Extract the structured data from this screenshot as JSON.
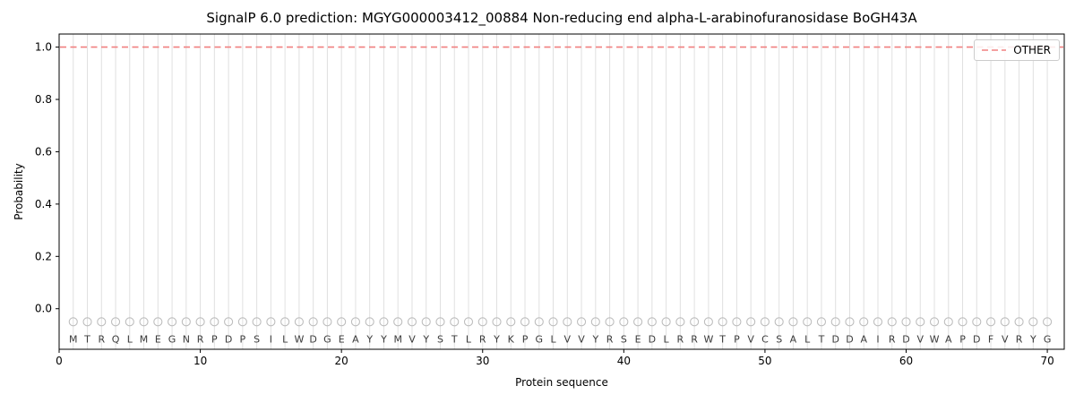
{
  "chart_data": {
    "type": "line",
    "title": "SignalP 6.0 prediction: MGYG000003412_00884 Non-reducing end alpha-L-arabinofuranosidase BoGH43A",
    "xlabel": "Protein sequence",
    "ylabel": "Probability",
    "xlim": [
      0,
      71.2
    ],
    "ylim": [
      -0.155,
      1.05
    ],
    "xticks": [
      0,
      10,
      20,
      30,
      40,
      50,
      60,
      70
    ],
    "yticks": [
      0.0,
      0.2,
      0.4,
      0.6,
      0.8,
      1.0
    ],
    "grid": {
      "vertical_per_residue": true,
      "color": "#e0e0e0"
    },
    "legend": {
      "position": "upper right",
      "entries": [
        {
          "label": "OTHER",
          "color": "#f08080",
          "linestyle": "dashed"
        }
      ]
    },
    "sequence": [
      "M",
      "T",
      "R",
      "Q",
      "L",
      "M",
      "E",
      "G",
      "N",
      "R",
      "P",
      "D",
      "P",
      "S",
      "I",
      "L",
      "W",
      "D",
      "G",
      "E",
      "A",
      "Y",
      "Y",
      "M",
      "V",
      "Y",
      "S",
      "T",
      "L",
      "R",
      "Y",
      "K",
      "P",
      "G",
      "L",
      "V",
      "V",
      "Y",
      "R",
      "S",
      "E",
      "D",
      "L",
      "R",
      "R",
      "W",
      "T",
      "P",
      "V",
      "C",
      "S",
      "A",
      "L",
      "T",
      "D",
      "D",
      "A",
      "I",
      "R",
      "D",
      "V",
      "W",
      "A",
      "P",
      "D",
      "F",
      "V",
      "R",
      "Y",
      "G"
    ],
    "series": [
      {
        "name": "OTHER",
        "linestyle": "dashed",
        "color": "#f08080",
        "y_constant": 1.0,
        "x_range": [
          1,
          70
        ],
        "spans_full_width": true
      }
    ],
    "residue_markers": {
      "shape": "open-circle",
      "y": -0.05,
      "edge_color": "#bdbdbd"
    },
    "sequence_label_y": -0.115,
    "colors": {
      "axis": "#000000",
      "tick_text": "#000000",
      "sequence_text": "#3a3a3a",
      "background": "#ffffff"
    }
  }
}
